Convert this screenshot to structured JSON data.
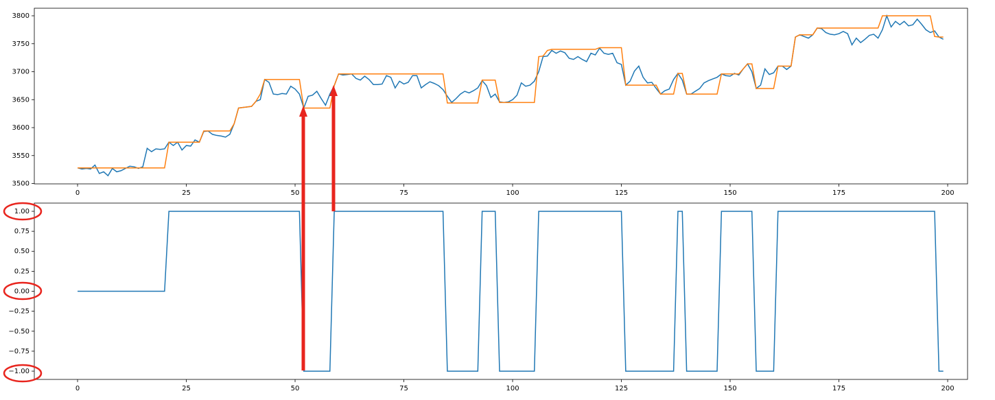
{
  "chart_data": [
    {
      "type": "line",
      "x": [
        0,
        1,
        2,
        3,
        4,
        5,
        6,
        7,
        8,
        9,
        10,
        11,
        12,
        13,
        14,
        15,
        16,
        17,
        18,
        19,
        20,
        21,
        22,
        23,
        24,
        25,
        26,
        27,
        28,
        29,
        30,
        31,
        32,
        33,
        34,
        35,
        36,
        37,
        38,
        39,
        40,
        41,
        42,
        43,
        44,
        45,
        46,
        47,
        48,
        49,
        50,
        51,
        52,
        53,
        54,
        55,
        56,
        57,
        58,
        59,
        60,
        61,
        62,
        63,
        64,
        65,
        66,
        67,
        68,
        69,
        70,
        71,
        72,
        73,
        74,
        75,
        76,
        77,
        78,
        79,
        80,
        81,
        82,
        83,
        84,
        85,
        86,
        87,
        88,
        89,
        90,
        91,
        92,
        93,
        94,
        95,
        96,
        97,
        98,
        99,
        100,
        101,
        102,
        103,
        104,
        105,
        106,
        107,
        108,
        109,
        110,
        111,
        112,
        113,
        114,
        115,
        116,
        117,
        118,
        119,
        120,
        121,
        122,
        123,
        124,
        125,
        126,
        127,
        128,
        129,
        130,
        131,
        132,
        133,
        134,
        135,
        136,
        137,
        138,
        139,
        140,
        141,
        142,
        143,
        144,
        145,
        146,
        147,
        148,
        149,
        150,
        151,
        152,
        153,
        154,
        155,
        156,
        157,
        158,
        159,
        160,
        161,
        162,
        163,
        164,
        165,
        166,
        167,
        168,
        169,
        170,
        171,
        172,
        173,
        174,
        175,
        176,
        177,
        178,
        179,
        180,
        181,
        182,
        183,
        184,
        185,
        186,
        187,
        188,
        189,
        190,
        191,
        192,
        193,
        194,
        195,
        196,
        197,
        198,
        199
      ],
      "series": [
        {
          "color": "#1f77b4",
          "values": [
            3528,
            3526,
            3527,
            3526,
            3533,
            3518,
            3521,
            3514,
            3527,
            3521,
            3523,
            3527,
            3531,
            3530,
            3527,
            3530,
            3563,
            3557,
            3562,
            3561,
            3562,
            3574,
            3568,
            3574,
            3560,
            3568,
            3567,
            3578,
            3574,
            3593,
            3594,
            3588,
            3586,
            3585,
            3583,
            3588,
            3607,
            3635,
            3636,
            3637,
            3638,
            3647,
            3650,
            3686,
            3681,
            3660,
            3659,
            3661,
            3660,
            3674,
            3669,
            3660,
            3635,
            3656,
            3658,
            3665,
            3652,
            3640,
            3660,
            3675,
            3696,
            3694,
            3695,
            3696,
            3688,
            3685,
            3692,
            3686,
            3677,
            3677,
            3678,
            3693,
            3690,
            3671,
            3683,
            3678,
            3681,
            3693,
            3693,
            3671,
            3677,
            3682,
            3679,
            3675,
            3668,
            3656,
            3645,
            3652,
            3660,
            3665,
            3662,
            3666,
            3671,
            3684,
            3675,
            3654,
            3660,
            3646,
            3645,
            3646,
            3650,
            3658,
            3680,
            3674,
            3676,
            3683,
            3700,
            3727,
            3728,
            3738,
            3733,
            3737,
            3734,
            3724,
            3722,
            3727,
            3722,
            3718,
            3733,
            3730,
            3742,
            3733,
            3731,
            3733,
            3716,
            3713,
            3676,
            3683,
            3701,
            3710,
            3690,
            3680,
            3681,
            3670,
            3660,
            3666,
            3669,
            3686,
            3697,
            3685,
            3660,
            3660,
            3665,
            3670,
            3680,
            3684,
            3687,
            3690,
            3696,
            3693,
            3692,
            3697,
            3694,
            3705,
            3714,
            3700,
            3670,
            3676,
            3705,
            3695,
            3698,
            3710,
            3710,
            3704,
            3710,
            3762,
            3766,
            3763,
            3760,
            3766,
            3778,
            3777,
            3770,
            3767,
            3766,
            3768,
            3772,
            3768,
            3748,
            3760,
            3752,
            3758,
            3765,
            3767,
            3760,
            3775,
            3800,
            3780,
            3790,
            3784,
            3790,
            3782,
            3784,
            3794,
            3785,
            3775,
            3770,
            3773,
            3762,
            3758
          ]
        },
        {
          "color": "#ff7f0e",
          "values": [
            3528,
            3528,
            3528,
            3528,
            3528,
            3528,
            3528,
            3528,
            3528,
            3528,
            3528,
            3528,
            3528,
            3528,
            3528,
            3528,
            3528,
            3528,
            3528,
            3528,
            3528,
            3574,
            3574,
            3574,
            3574,
            3574,
            3574,
            3574,
            3574,
            3594,
            3594,
            3594,
            3594,
            3594,
            3594,
            3594,
            3607,
            3635,
            3636,
            3637,
            3638,
            3647,
            3660,
            3686,
            3686,
            3686,
            3686,
            3686,
            3686,
            3686,
            3686,
            3686,
            3635,
            3635,
            3635,
            3635,
            3635,
            3635,
            3635,
            3675,
            3696,
            3696,
            3696,
            3696,
            3696,
            3696,
            3696,
            3696,
            3696,
            3696,
            3696,
            3696,
            3696,
            3696,
            3696,
            3696,
            3696,
            3696,
            3696,
            3696,
            3696,
            3696,
            3696,
            3696,
            3696,
            3644,
            3644,
            3644,
            3644,
            3644,
            3644,
            3644,
            3644,
            3685,
            3685,
            3685,
            3685,
            3645,
            3645,
            3645,
            3645,
            3645,
            3645,
            3645,
            3645,
            3645,
            3727,
            3728,
            3738,
            3740,
            3740,
            3740,
            3740,
            3740,
            3740,
            3740,
            3740,
            3740,
            3740,
            3740,
            3743,
            3743,
            3743,
            3743,
            3743,
            3743,
            3676,
            3676,
            3676,
            3676,
            3676,
            3676,
            3676,
            3676,
            3660,
            3660,
            3660,
            3660,
            3697,
            3697,
            3660,
            3660,
            3660,
            3660,
            3660,
            3660,
            3660,
            3660,
            3696,
            3696,
            3696,
            3696,
            3696,
            3705,
            3714,
            3714,
            3670,
            3670,
            3670,
            3670,
            3670,
            3710,
            3710,
            3710,
            3710,
            3762,
            3766,
            3766,
            3766,
            3766,
            3778,
            3778,
            3778,
            3778,
            3778,
            3778,
            3778,
            3778,
            3778,
            3778,
            3778,
            3778,
            3778,
            3778,
            3778,
            3800,
            3800,
            3800,
            3800,
            3800,
            3800,
            3800,
            3800,
            3800,
            3800,
            3800,
            3800,
            3763,
            3762,
            3762
          ]
        }
      ],
      "xlim": [
        -9.94,
        204.57
      ],
      "xticks": [
        0,
        25,
        50,
        75,
        100,
        125,
        150,
        175,
        200
      ],
      "ylim": [
        3499.4,
        3813.5
      ],
      "yticks": [
        3500,
        3550,
        3600,
        3650,
        3700,
        3750,
        3800
      ]
    },
    {
      "type": "line",
      "x": [
        0,
        1,
        2,
        3,
        4,
        5,
        6,
        7,
        8,
        9,
        10,
        11,
        12,
        13,
        14,
        15,
        16,
        17,
        18,
        19,
        20,
        21,
        22,
        23,
        24,
        25,
        26,
        27,
        28,
        29,
        30,
        31,
        32,
        33,
        34,
        35,
        36,
        37,
        38,
        39,
        40,
        41,
        42,
        43,
        44,
        45,
        46,
        47,
        48,
        49,
        50,
        51,
        52,
        53,
        54,
        55,
        56,
        57,
        58,
        59,
        60,
        61,
        62,
        63,
        64,
        65,
        66,
        67,
        68,
        69,
        70,
        71,
        72,
        73,
        74,
        75,
        76,
        77,
        78,
        79,
        80,
        81,
        82,
        83,
        84,
        85,
        86,
        87,
        88,
        89,
        90,
        91,
        92,
        93,
        94,
        95,
        96,
        97,
        98,
        99,
        100,
        101,
        102,
        103,
        104,
        105,
        106,
        107,
        108,
        109,
        110,
        111,
        112,
        113,
        114,
        115,
        116,
        117,
        118,
        119,
        120,
        121,
        122,
        123,
        124,
        125,
        126,
        127,
        128,
        129,
        130,
        131,
        132,
        133,
        134,
        135,
        136,
        137,
        138,
        139,
        140,
        141,
        142,
        143,
        144,
        145,
        146,
        147,
        148,
        149,
        150,
        151,
        152,
        153,
        154,
        155,
        156,
        157,
        158,
        159,
        160,
        161,
        162,
        163,
        164,
        165,
        166,
        167,
        168,
        169,
        170,
        171,
        172,
        173,
        174,
        175,
        176,
        177,
        178,
        179,
        180,
        181,
        182,
        183,
        184,
        185,
        186,
        187,
        188,
        189,
        190,
        191,
        192,
        193,
        194,
        195,
        196,
        197,
        198,
        199
      ],
      "series": [
        {
          "color": "#1f77b4",
          "values": [
            0,
            0,
            0,
            0,
            0,
            0,
            0,
            0,
            0,
            0,
            0,
            0,
            0,
            0,
            0,
            0,
            0,
            0,
            0,
            0,
            0,
            1,
            1,
            1,
            1,
            1,
            1,
            1,
            1,
            1,
            1,
            1,
            1,
            1,
            1,
            1,
            1,
            1,
            1,
            1,
            1,
            1,
            1,
            1,
            1,
            1,
            1,
            1,
            1,
            1,
            1,
            1,
            -1,
            -1,
            -1,
            -1,
            -1,
            -1,
            -1,
            1,
            1,
            1,
            1,
            1,
            1,
            1,
            1,
            1,
            1,
            1,
            1,
            1,
            1,
            1,
            1,
            1,
            1,
            1,
            1,
            1,
            1,
            1,
            1,
            1,
            1,
            -1,
            -1,
            -1,
            -1,
            -1,
            -1,
            -1,
            -1,
            1,
            1,
            1,
            1,
            -1,
            -1,
            -1,
            -1,
            -1,
            -1,
            -1,
            -1,
            -1,
            1,
            1,
            1,
            1,
            1,
            1,
            1,
            1,
            1,
            1,
            1,
            1,
            1,
            1,
            1,
            1,
            1,
            1,
            1,
            1,
            -1,
            -1,
            -1,
            -1,
            -1,
            -1,
            -1,
            -1,
            -1,
            -1,
            -1,
            -1,
            1,
            1,
            -1,
            -1,
            -1,
            -1,
            -1,
            -1,
            -1,
            -1,
            1,
            1,
            1,
            1,
            1,
            1,
            1,
            1,
            -1,
            -1,
            -1,
            -1,
            -1,
            1,
            1,
            1,
            1,
            1,
            1,
            1,
            1,
            1,
            1,
            1,
            1,
            1,
            1,
            1,
            1,
            1,
            1,
            1,
            1,
            1,
            1,
            1,
            1,
            1,
            1,
            1,
            1,
            1,
            1,
            1,
            1,
            1,
            1,
            1,
            1,
            1,
            -1,
            -1
          ]
        }
      ],
      "xlim": [
        -9.94,
        204.57
      ],
      "xticks": [
        0,
        25,
        50,
        75,
        100,
        125,
        150,
        175,
        200
      ],
      "ylim": [
        -1.103,
        1.103
      ],
      "yticks": [
        {
          "value": -1,
          "label": "−1.00"
        },
        {
          "value": -0.75,
          "label": "−0.75"
        },
        {
          "value": -0.5,
          "label": "−0.50"
        },
        {
          "value": -0.25,
          "label": "−0.25"
        },
        {
          "value": 0,
          "label": "0.00"
        },
        {
          "value": 0.25,
          "label": "0.25"
        },
        {
          "value": 0.5,
          "label": "0.50"
        },
        {
          "value": 0.75,
          "label": "0.75"
        },
        {
          "value": 1,
          "label": "1.00"
        }
      ]
    }
  ]
}
